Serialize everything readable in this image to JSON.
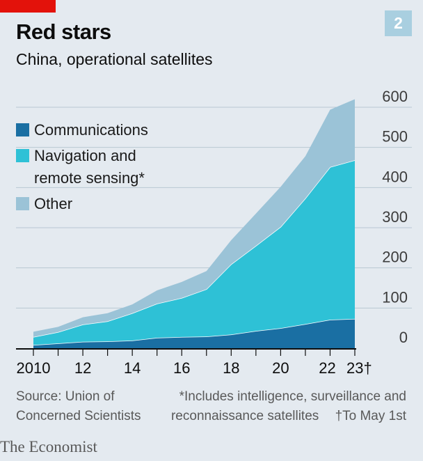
{
  "header": {
    "title": "Red stars",
    "subtitle": "China, operational satellites",
    "chart_number": "2"
  },
  "footer": {
    "source_line1": "Source: Union of",
    "source_line2": "Concerned Scientists",
    "note_line1": "*Includes intelligence, surveillance and",
    "note_line2": "reconnaissance satellites",
    "note_line3": "†To May 1st",
    "brand": "The Economist"
  },
  "colors": {
    "background": "#e4eaf0",
    "communications": "#1a6fa3",
    "navigation": "#2ec1d6",
    "other": "#9bc3d7",
    "accent": "#e3120b"
  },
  "chart_data": {
    "type": "area",
    "stacked": true,
    "x": [
      2010,
      2011,
      2012,
      2013,
      2014,
      2015,
      2016,
      2017,
      2018,
      2019,
      2020,
      2021,
      2022,
      2023
    ],
    "x_tick_labels": [
      "2010",
      "12",
      "14",
      "16",
      "18",
      "20",
      "22",
      "23†"
    ],
    "x_tick_values": [
      2010,
      2012,
      2014,
      2016,
      2018,
      2020,
      2022,
      2023
    ],
    "y_ticks": [
      0,
      100,
      200,
      300,
      400,
      500,
      600
    ],
    "ylim": [
      0,
      620
    ],
    "y_axis_side": "right",
    "grid": true,
    "legend_position": "top-left",
    "series": [
      {
        "name": "Communications",
        "values": [
          8,
          12,
          16,
          17,
          19,
          26,
          28,
          29,
          34,
          43,
          50,
          60,
          71,
          73
        ]
      },
      {
        "name": "Navigation and remote sensing*",
        "values": [
          20,
          28,
          43,
          50,
          68,
          85,
          97,
          118,
          175,
          212,
          252,
          313,
          380,
          395
        ]
      },
      {
        "name": "Other",
        "values": [
          13,
          13,
          18,
          20,
          22,
          33,
          40,
          45,
          60,
          80,
          100,
          105,
          143,
          152
        ]
      }
    ],
    "legend": [
      "Communications",
      "Navigation and",
      "remote sensing*",
      "Other"
    ]
  }
}
